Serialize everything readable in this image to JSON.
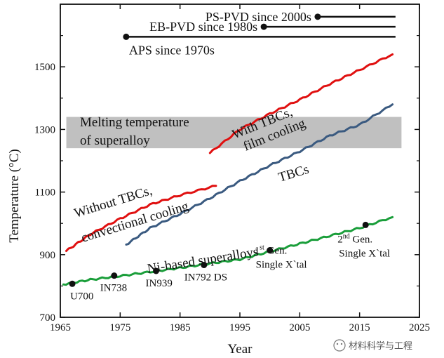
{
  "chart_data": {
    "type": "line",
    "xlabel": "Year",
    "ylabel": "Temperature (°C)",
    "xlim": [
      1965,
      2025
    ],
    "ylim": [
      700,
      1700
    ],
    "x_ticks": [
      1965,
      1975,
      1985,
      1995,
      2005,
      2015,
      2025
    ],
    "y_ticks": [
      700,
      900,
      1100,
      1300,
      1500
    ],
    "grid": false,
    "legend": "none",
    "series": [
      {
        "name": "Ni-based superalloys",
        "color": "#1a9e3a",
        "x": [
          1965.5,
          1970,
          1975,
          1980,
          1985,
          1990,
          1995,
          2000,
          2005,
          2010,
          2015,
          2020.5
        ],
        "y": [
          805,
          820,
          832,
          845,
          858,
          872,
          885,
          910,
          935,
          960,
          985,
          1020
        ]
      },
      {
        "name": "Without TBCs, convectional cooling",
        "color": "#e01010",
        "x": [
          1966,
          1970,
          1975,
          1980,
          1985,
          1991
        ],
        "y": [
          912,
          965,
          1015,
          1060,
          1090,
          1120
        ]
      },
      {
        "name": "TBCs",
        "color": "#3a5a80",
        "x": [
          1976,
          1980,
          1985,
          1990,
          1995,
          2000,
          2005,
          2010,
          2015,
          2020.5
        ],
        "y": [
          932,
          985,
          1030,
          1080,
          1135,
          1185,
          1230,
          1280,
          1315,
          1380
        ]
      },
      {
        "name": "With TBCs, film cooling",
        "color": "#e01010",
        "x": [
          1990,
          1995,
          2000,
          2005,
          2010,
          2015,
          2020.5
        ],
        "y": [
          1225,
          1300,
          1350,
          1395,
          1445,
          1490,
          1540
        ]
      }
    ],
    "band": {
      "label": "Melting temperature of superalloy",
      "y": [
        1240,
        1340
      ],
      "x": [
        1966,
        2022
      ],
      "color": "#c0c0c0"
    },
    "technology_lines": [
      {
        "label": "PS-PVD since 2000s",
        "start": 2008,
        "end": 2021,
        "y": 1660
      },
      {
        "label": "EB-PVD since 1980s",
        "start": 1999,
        "end": 2021,
        "y": 1628
      },
      {
        "label": "APS since 1970s",
        "start": 1976,
        "end": 2021,
        "y": 1596
      }
    ],
    "alloy_markers": [
      {
        "label": "U700",
        "x": 1967,
        "y": 807
      },
      {
        "label": "IN738",
        "x": 1974,
        "y": 833
      },
      {
        "label": "IN939",
        "x": 1981,
        "y": 848
      },
      {
        "label": "IN792 DS",
        "x": 1989,
        "y": 867
      },
      {
        "label": "1st Gen. Single X`tal",
        "x": 2000,
        "y": 914
      },
      {
        "label": "2nd Gen. Single X`tal",
        "x": 2016,
        "y": 995
      }
    ],
    "annotations": {
      "without_tbcs": "Without TBCs, convectional cooling",
      "without_tbcs_line1": "Without TBCs,",
      "without_tbcs_line2": "convectional cooling",
      "with_tbcs_line1": "With TBCs,",
      "with_tbcs_line2": "film cooling",
      "tbcs": "TBCs",
      "ni_based": "Ni-based superalloys",
      "melting_line1": "Melting temperature",
      "melting_line2": "of superalloy"
    }
  },
  "watermark": "材料科学与工程"
}
